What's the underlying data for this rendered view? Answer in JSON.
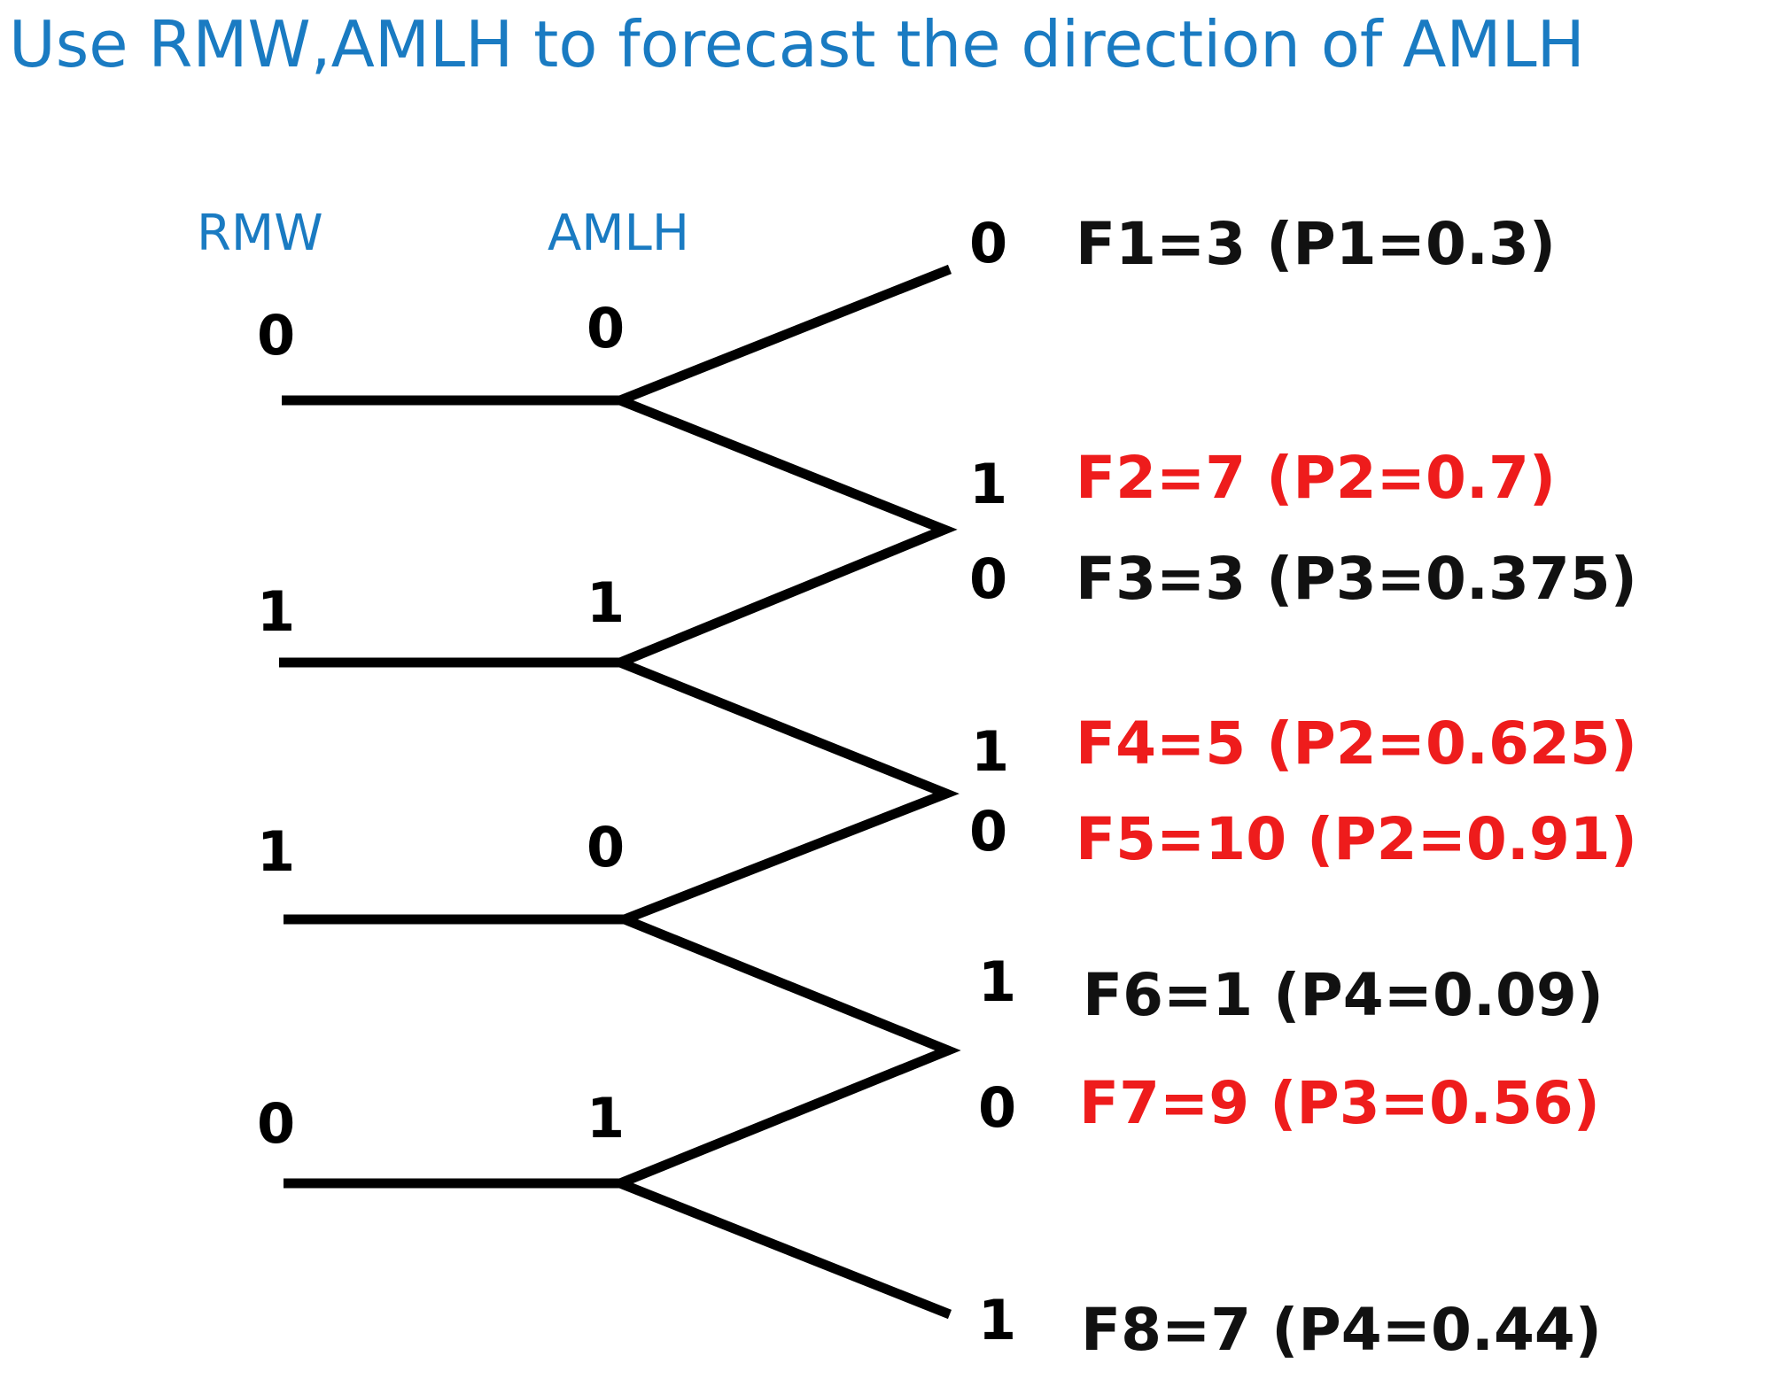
{
  "title": "Use RMW,AMLH to forecast the direction of AMLH",
  "columns": {
    "rmw": "RMW",
    "amlh": "AMLH"
  },
  "rows": [
    {
      "rmw": "0",
      "amlh": "0"
    },
    {
      "rmw": "1",
      "amlh": "1"
    },
    {
      "rmw": "1",
      "amlh": "0"
    },
    {
      "rmw": "0",
      "amlh": "1"
    }
  ],
  "outcomes": [
    {
      "bit": "0",
      "text": "F1=3 (P1=0.3)",
      "color": "#111111"
    },
    {
      "bit": "1",
      "text": "F2=7 (P2=0.7)",
      "color": "#ee1c1c"
    },
    {
      "bit": "0",
      "text": "F3=3 (P3=0.375)",
      "color": "#111111"
    },
    {
      "bit": "1",
      "text": "F4=5 (P2=0.625)",
      "color": "#ee1c1c"
    },
    {
      "bit": "0",
      "text": "F5=10 (P2=0.91)",
      "color": "#ee1c1c"
    },
    {
      "bit": "1",
      "text": "F6=1 (P4=0.09)",
      "color": "#111111"
    },
    {
      "bit": "0",
      "text": "F7=9 (P3=0.56)",
      "color": "#ee1c1c"
    },
    {
      "bit": "1",
      "text": "F8=7 (P4=0.44)",
      "color": "#111111"
    }
  ]
}
